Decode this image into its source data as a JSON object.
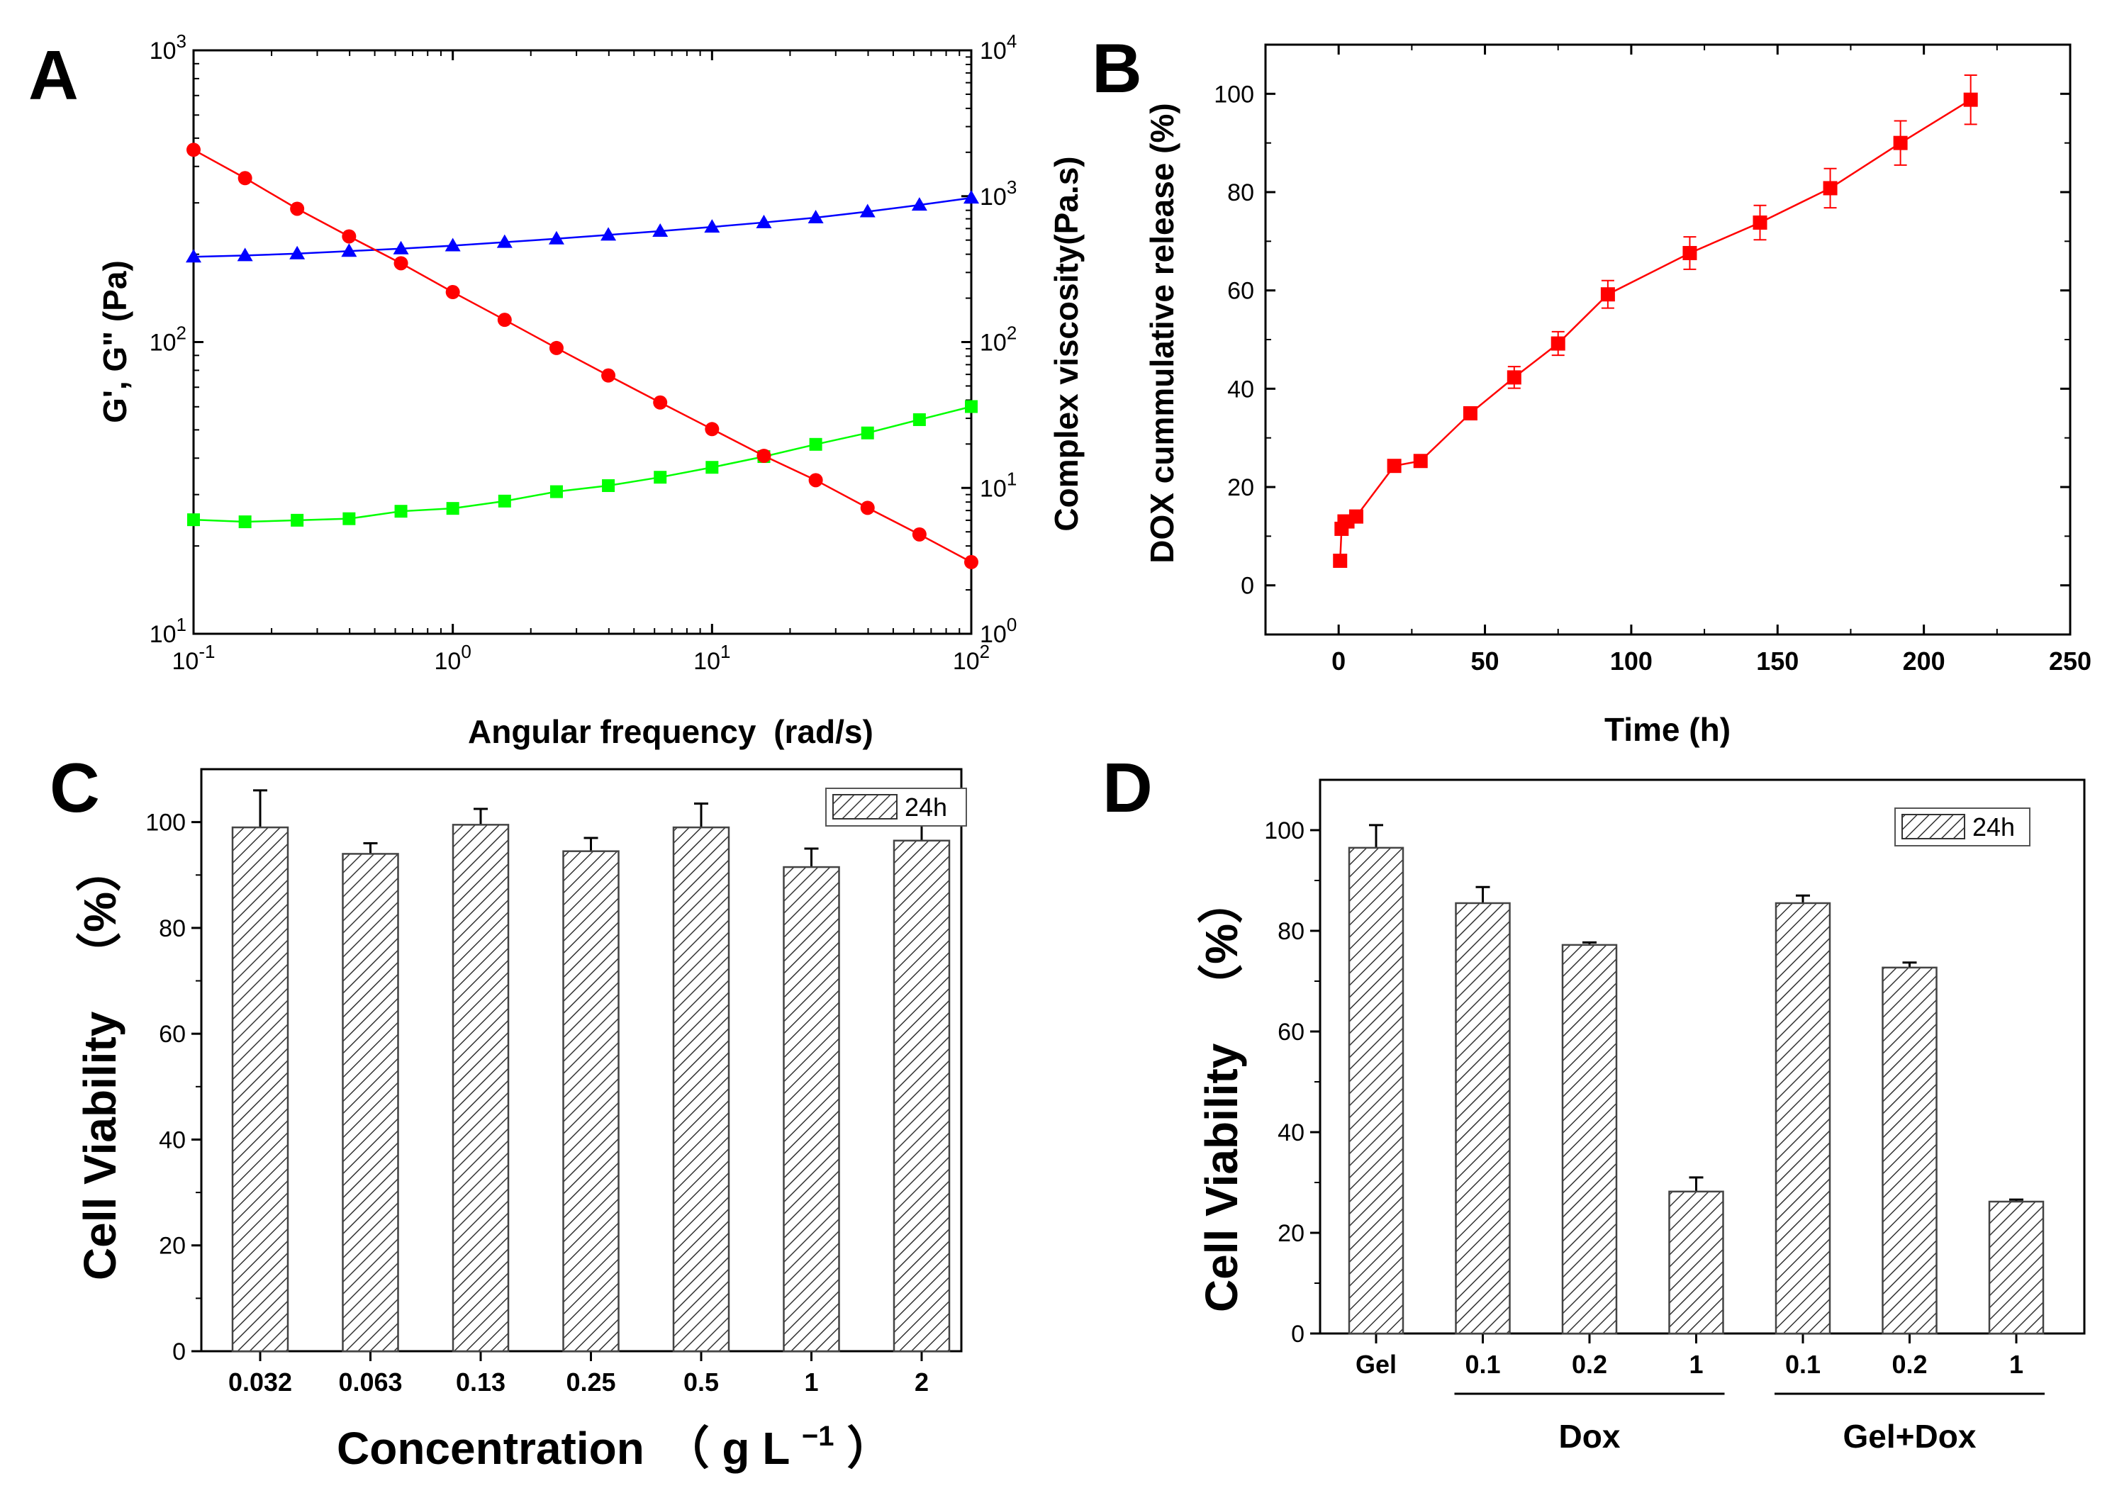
{
  "chart_data": [
    {
      "panel": "A",
      "type": "line",
      "xscale": "log",
      "yscale": "log",
      "xlabel_main": "Angular frequency",
      "xlabel_unit": "(rad/s)",
      "ylabel": "G', G\" (Pa)",
      "ylabel_right": "Complex viscosity(Pa.s)",
      "xlim": [
        0.1,
        100
      ],
      "ylim": [
        10,
        1000
      ],
      "ylim_right": [
        1,
        10000
      ],
      "x_ticks": [
        {
          "base": "10",
          "exp": "-1"
        },
        {
          "base": "10",
          "exp": "0"
        },
        {
          "base": "10",
          "exp": "1"
        },
        {
          "base": "10",
          "exp": "2"
        }
      ],
      "y_ticks": [
        {
          "base": "10",
          "exp": "1"
        },
        {
          "base": "10",
          "exp": "2"
        },
        {
          "base": "10",
          "exp": "3"
        }
      ],
      "y_ticks_right": [
        {
          "base": "10",
          "exp": "0"
        },
        {
          "base": "10",
          "exp": "1"
        },
        {
          "base": "10",
          "exp": "2"
        },
        {
          "base": "10",
          "exp": "3"
        },
        {
          "base": "10",
          "exp": "4"
        }
      ],
      "x": [
        0.1,
        0.158,
        0.251,
        0.398,
        0.631,
        1.0,
        1.585,
        2.512,
        3.981,
        6.31,
        10.0,
        15.85,
        25.12,
        39.81,
        63.1,
        100.0
      ],
      "series": [
        {
          "name": "G'",
          "color": "#0000ff",
          "marker": "triangle",
          "axis": "left",
          "values": [
            196,
            198,
            201,
            205,
            209,
            214,
            220,
            226,
            233,
            240,
            248,
            257,
            267,
            280,
            295,
            312
          ]
        },
        {
          "name": "G\"",
          "color": "#00ff00",
          "marker": "square",
          "axis": "left",
          "values": [
            24.6,
            24.2,
            24.5,
            24.8,
            26.3,
            26.9,
            28.5,
            30.7,
            32.2,
            34.4,
            37.2,
            40.5,
            44.6,
            48.8,
            54.2,
            60.1
          ]
        },
        {
          "name": "Complex viscosity",
          "color": "#ff0000",
          "marker": "circle",
          "axis": "right",
          "values": [
            2080,
            1330,
            820,
            530,
            347,
            220,
            142,
            91,
            59,
            38.5,
            25.3,
            16.6,
            11.3,
            7.3,
            4.8,
            3.1
          ]
        }
      ]
    },
    {
      "panel": "B",
      "type": "line",
      "xlabel": "Time (h)",
      "ylabel": "DOX cummulative release (%)",
      "xlim": [
        -25,
        250
      ],
      "ylim": [
        -10,
        110
      ],
      "x_ticks": [
        0,
        50,
        100,
        150,
        200,
        250
      ],
      "y_ticks": [
        0,
        20,
        40,
        60,
        80,
        100
      ],
      "series": [
        {
          "name": "DOX release",
          "color": "#ff0000",
          "marker": "square",
          "x": [
            0.5,
            1,
            2,
            3,
            6,
            19,
            28,
            45,
            60,
            75,
            92,
            120,
            144,
            168,
            192,
            216
          ],
          "values": [
            5,
            11.5,
            13,
            13,
            14,
            24.3,
            25.3,
            35,
            42.3,
            49.2,
            59.2,
            67.6,
            73.8,
            80.8,
            90,
            98.8
          ],
          "errors": [
            0,
            0,
            0.5,
            0.5,
            0.5,
            0.6,
            0.6,
            1.2,
            2.2,
            2.4,
            2.8,
            3.3,
            3.5,
            4.0,
            4.5,
            5.0
          ]
        }
      ]
    },
    {
      "panel": "C",
      "type": "bar",
      "xlabel_main": "Concentration",
      "xlabel_paren_open": "（",
      "xlabel_unit": "g L",
      "xlabel_exp": "−1",
      "xlabel_paren_close": "）",
      "ylabel_main": "Cell Viability",
      "ylabel_unit": "（%）",
      "ylim": [
        0,
        110
      ],
      "y_ticks": [
        0,
        20,
        40,
        60,
        80,
        100
      ],
      "legend": "24h",
      "categories": [
        "0.032",
        "0.063",
        "0.13",
        "0.25",
        "0.5",
        "1",
        "2"
      ],
      "values": [
        99,
        94,
        99.5,
        94.5,
        99,
        91.5,
        96.5
      ],
      "errors": [
        7,
        2,
        3,
        2.5,
        4.5,
        3.5,
        3
      ]
    },
    {
      "panel": "D",
      "type": "bar",
      "ylabel_main": "Cell Viability",
      "ylabel_unit": "（%）",
      "ylim": [
        0,
        110
      ],
      "y_ticks": [
        0,
        20,
        40,
        60,
        80,
        100
      ],
      "legend": "24h",
      "categories": [
        "Gel",
        "0.1",
        "0.2",
        "1",
        "0.1",
        "0.2",
        "1"
      ],
      "values": [
        96.5,
        85.5,
        77.2,
        28.2,
        85.5,
        72.7,
        26.2
      ],
      "errors": [
        4.5,
        3.2,
        0.5,
        2.8,
        1.5,
        1.0,
        0.4
      ],
      "groups": [
        {
          "label": "Dox",
          "from": 1,
          "to": 3
        },
        {
          "label": "Gel+Dox",
          "from": 4,
          "to": 6
        }
      ]
    }
  ],
  "panels": {
    "a": "A",
    "b": "B",
    "c": "C",
    "d": "D"
  }
}
